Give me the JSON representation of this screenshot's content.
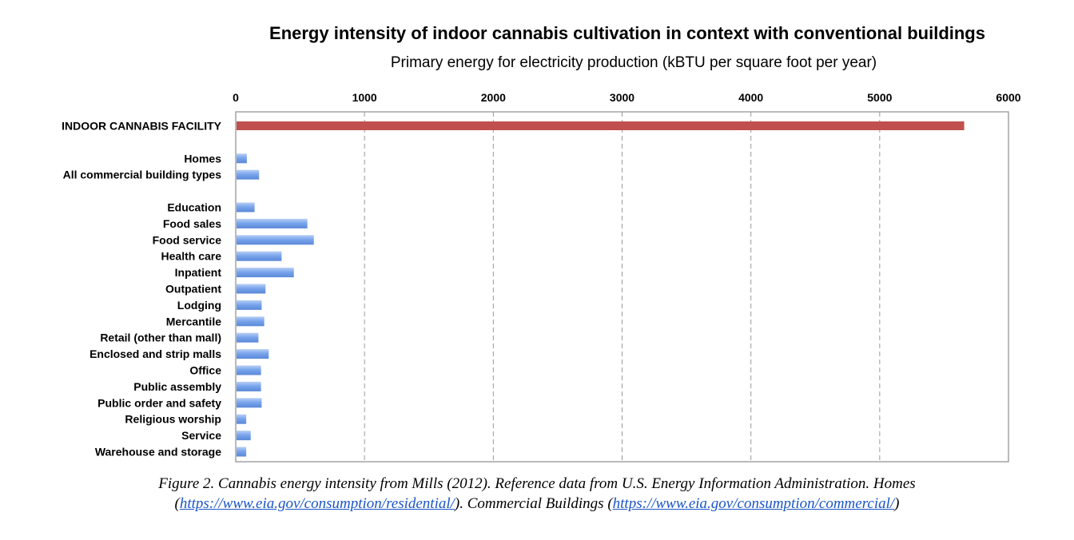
{
  "chart_data": {
    "type": "bar",
    "orientation": "horizontal",
    "title": "Energy intensity of indoor cannabis cultivation in context with conventional buildings",
    "xlabel": "Primary energy for electricity production (kBTU per square foot per year)",
    "xlim": [
      0,
      6000
    ],
    "xticks": [
      "0",
      "1000",
      "2000",
      "3000",
      "4000",
      "5000",
      "6000"
    ],
    "grid": "vertical dashed",
    "categories": [
      "INDOOR CANNABIS FACILITY",
      "Homes",
      "All commercial building types",
      "Education",
      "Food sales",
      "Food service",
      "Health care",
      "Inpatient",
      "Outpatient",
      "Lodging",
      "Mercantile",
      "Retail (other than mall)",
      "Enclosed and strip malls",
      "Office",
      "Public assembly",
      "Public order and safety",
      "Religious worship",
      "Service",
      "Warehouse and storage"
    ],
    "values": [
      5650,
      80,
      175,
      140,
      550,
      600,
      350,
      445,
      225,
      195,
      215,
      170,
      250,
      190,
      190,
      195,
      75,
      110,
      75
    ],
    "colors": {
      "highlight": "#c0504d",
      "bars": "#6f9ee8"
    }
  },
  "caption": {
    "line1": "Figure 2. Cannabis energy intensity from Mills (2012). Reference data from U.S. Energy Information Administration. Homes",
    "open_paren": "(",
    "link1": "https://www.eia.gov/consumption/residential/",
    "middle": "). Commercial Buildings (",
    "link2": "https://www.eia.gov/consumption/commercial/",
    "close_paren": ")"
  }
}
